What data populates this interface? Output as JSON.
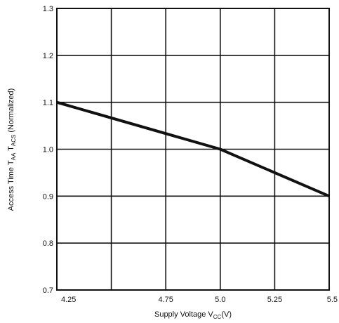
{
  "chart_data": {
    "type": "line",
    "title": "",
    "xlabel": {
      "prefix": "Supply Voltage V",
      "subscript": "CC",
      "suffix": "(V)"
    },
    "ylabel": {
      "prefix": "Access Time T",
      "subscript1": "AA",
      "middle": " T",
      "subscript2": "ACS",
      "suffix": " (Normalized)"
    },
    "xlim": [
      4.25,
      5.5
    ],
    "ylim": [
      0.7,
      1.3
    ],
    "x_ticks": [
      "4.25",
      "4.75",
      "5.0",
      "5.25",
      "5.5"
    ],
    "x_tick_values": [
      4.25,
      4.75,
      5.0,
      5.25,
      5.5
    ],
    "x_grid_values": [
      4.25,
      4.5,
      4.75,
      5.0,
      5.25,
      5.5
    ],
    "y_ticks": [
      "0.7",
      "0.8",
      "0.9",
      "1.0",
      "1.1",
      "1.2",
      "1.3"
    ],
    "y_tick_values": [
      0.7,
      0.8,
      0.9,
      1.0,
      1.1,
      1.2,
      1.3
    ],
    "grid": true,
    "series": [
      {
        "x": [
          4.25,
          5.0,
          5.5
        ],
        "y": [
          1.1,
          1.0,
          0.9
        ]
      }
    ]
  }
}
